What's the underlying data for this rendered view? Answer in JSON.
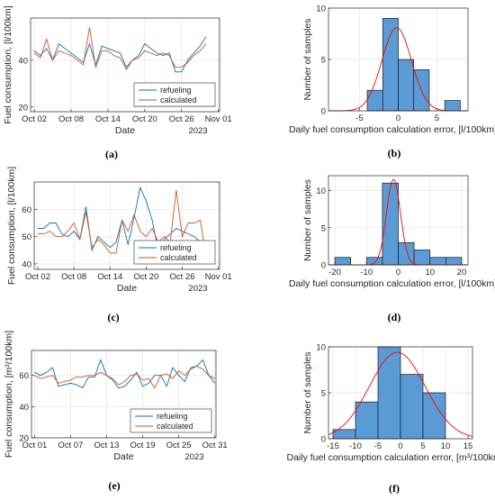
{
  "chart_data": [
    {
      "id": "a",
      "type": "line",
      "caption": "(a)",
      "xlabel": "Date",
      "ylabel": "Fuel consumption, [l/100km]",
      "x_ticks": [
        "Oct 02",
        "Oct 08",
        "Oct 14",
        "Oct 20",
        "Oct 26",
        "Nov 01"
      ],
      "x_secondary_label": "2023",
      "y_ticks": [
        "20",
        "40"
      ],
      "ylim": [
        18,
        58
      ],
      "x": [
        2,
        3,
        4,
        5,
        6,
        7,
        8,
        9,
        10,
        11,
        12,
        13,
        14,
        15,
        16,
        17,
        18,
        19,
        20,
        21,
        22,
        23,
        24,
        25,
        26,
        27,
        28,
        29,
        30
      ],
      "series": [
        {
          "name": "refueling",
          "color": "#0072BD",
          "values": [
            44,
            42,
            45,
            40,
            47,
            45,
            43,
            41,
            39,
            47,
            38,
            46,
            45,
            44,
            43,
            37,
            40,
            42,
            47,
            45,
            43,
            42,
            43,
            35,
            35,
            40,
            43,
            46,
            50
          ]
        },
        {
          "name": "calculated",
          "color": "#D95319",
          "values": [
            43,
            41,
            49,
            40,
            44,
            43,
            42,
            40,
            38,
            54,
            37,
            44,
            44,
            42,
            41,
            36,
            40,
            41,
            44,
            43,
            42,
            43,
            42,
            37,
            37,
            39,
            42,
            44,
            47
          ]
        }
      ],
      "legend_position": "bottom-right",
      "grid": true
    },
    {
      "id": "b",
      "type": "bar",
      "subtype": "histogram",
      "caption": "(b)",
      "xlabel": "Daily fuel consumption calculation error, [l/100km]",
      "ylabel": "Number of samples",
      "x_ticks": [
        "-5",
        "0",
        "5"
      ],
      "y_ticks": [
        "0",
        "5",
        "10"
      ],
      "xlim": [
        -9,
        9
      ],
      "ylim": [
        0,
        10
      ],
      "bins": [
        [
          -4,
          -2
        ],
        [
          -2,
          0
        ],
        [
          0,
          2
        ],
        [
          2,
          4
        ],
        [
          4,
          6
        ],
        [
          6,
          8
        ]
      ],
      "values": [
        2,
        9,
        5,
        4,
        0,
        1
      ],
      "fit": {
        "type": "normal",
        "mean": -0.2,
        "sd": 1.9,
        "peak": 8.1,
        "color": "#FF0000"
      },
      "bar_color": "#5B9BD5",
      "grid": true
    },
    {
      "id": "c",
      "type": "line",
      "caption": "(c)",
      "xlabel": "Date",
      "ylabel": "Fuel consumption, [l/100km]",
      "x_ticks": [
        "Oct 02",
        "Oct 08",
        "Oct 14",
        "Oct 20",
        "Oct 26",
        "Nov 01"
      ],
      "x_secondary_label": "2023",
      "y_ticks": [
        "40",
        "50",
        "60"
      ],
      "ylim": [
        38,
        70
      ],
      "x": [
        2,
        3,
        4,
        5,
        6,
        7,
        8,
        9,
        10,
        11,
        12,
        13,
        14,
        15,
        16,
        17,
        18,
        19,
        20,
        21,
        22,
        23,
        24,
        25,
        26,
        27,
        28,
        29,
        30
      ],
      "series": [
        {
          "name": "refueling",
          "color": "#0072BD",
          "values": [
            53,
            53,
            55,
            55,
            51,
            50,
            52,
            49,
            61,
            45,
            50,
            48,
            46,
            48,
            56,
            47,
            57,
            68,
            63,
            56,
            45,
            49,
            51,
            53,
            52,
            51,
            50,
            48,
            43
          ]
        },
        {
          "name": "calculated",
          "color": "#D95319",
          "values": [
            51,
            51,
            52,
            50,
            50,
            52,
            55,
            49,
            59,
            46,
            49,
            47,
            44,
            44,
            56,
            52,
            58,
            52,
            50,
            53,
            48,
            50,
            48,
            67,
            50,
            55,
            55,
            56,
            42
          ]
        }
      ],
      "legend_position": "bottom-right",
      "grid": true
    },
    {
      "id": "d",
      "type": "bar",
      "subtype": "histogram",
      "caption": "(d)",
      "xlabel": "Daily fuel consumption calculation error, [l/100km]",
      "ylabel": "Number of samples",
      "x_ticks": [
        "-20",
        "-10",
        "0",
        "10",
        "20"
      ],
      "y_ticks": [
        "0",
        "5",
        "10"
      ],
      "xlim": [
        -22,
        22
      ],
      "ylim": [
        0,
        12
      ],
      "bins": [
        [
          -20,
          -15
        ],
        [
          -15,
          -10
        ],
        [
          -10,
          -5
        ],
        [
          -5,
          0
        ],
        [
          0,
          5
        ],
        [
          5,
          10
        ],
        [
          10,
          15
        ],
        [
          15,
          20
        ]
      ],
      "values": [
        1,
        0,
        1,
        11,
        3,
        2,
        1,
        1
      ],
      "fit": {
        "type": "normal",
        "mean": -1.5,
        "sd": 2.2,
        "peak": 11.5,
        "color": "#FF0000"
      },
      "bar_color": "#5B9BD5",
      "grid": true
    },
    {
      "id": "e",
      "type": "line",
      "caption": "(e)",
      "xlabel": "Date",
      "ylabel": "Fuel consumption, [m³/100km]",
      "x_ticks": [
        "Oct 01",
        "Oct 07",
        "Oct 13",
        "Oct 19",
        "Oct 25",
        "Oct 31"
      ],
      "x_secondary_label": "2023",
      "y_ticks": [
        "20",
        "40",
        "60"
      ],
      "ylim": [
        20,
        76
      ],
      "x": [
        1,
        2,
        3,
        4,
        5,
        6,
        7,
        8,
        9,
        10,
        11,
        12,
        13,
        14,
        15,
        16,
        17,
        18,
        19,
        20,
        21,
        22,
        23,
        24,
        25,
        26,
        27,
        28,
        29,
        30,
        31
      ],
      "series": [
        {
          "name": "refueling",
          "color": "#0072BD",
          "values": [
            62,
            60,
            62,
            65,
            53,
            54,
            55,
            54,
            52,
            59,
            59,
            70,
            60,
            57,
            52,
            53,
            57,
            62,
            53,
            55,
            60,
            60,
            53,
            65,
            60,
            56,
            65,
            66,
            70,
            60,
            55
          ]
        },
        {
          "name": "calculated",
          "color": "#D95319",
          "values": [
            60,
            58,
            59,
            60,
            55,
            56,
            57,
            59,
            59,
            60,
            60,
            62,
            60,
            58,
            54,
            56,
            60,
            61,
            57,
            58,
            52,
            60,
            61,
            58,
            63,
            60,
            64,
            66,
            64,
            60,
            58
          ]
        }
      ],
      "legend_position": "bottom-right",
      "grid": true
    },
    {
      "id": "f",
      "type": "bar",
      "subtype": "histogram",
      "caption": "(f)",
      "xlabel": "Daily fuel consumption calculation error, [m³/100km]",
      "ylabel": "Number of samples",
      "x_ticks": [
        "-15",
        "-10",
        "-5",
        "0",
        "5",
        "10",
        "15"
      ],
      "y_ticks": [
        "0",
        "5",
        "10"
      ],
      "xlim": [
        -16,
        16
      ],
      "ylim": [
        0,
        10
      ],
      "bins": [
        [
          -15,
          -10
        ],
        [
          -10,
          -5
        ],
        [
          -5,
          0
        ],
        [
          0,
          5
        ],
        [
          5,
          10
        ]
      ],
      "values": [
        1,
        4,
        10,
        7,
        5
      ],
      "fit": {
        "type": "normal",
        "mean": -0.7,
        "sd": 6.2,
        "peak": 9.4,
        "color": "#FF0000"
      },
      "bar_color": "#5B9BD5",
      "grid": true
    }
  ]
}
